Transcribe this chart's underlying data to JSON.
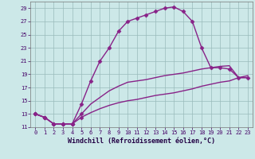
{
  "xlabel": "Windchill (Refroidissement éolien,°C)",
  "bg_color": "#cce8e8",
  "grid_color": "#99bbbb",
  "line_color": "#882288",
  "xmin": -0.5,
  "xmax": 23.5,
  "ymin": 11,
  "ymax": 30,
  "series_main": [
    0,
    1,
    2,
    3,
    4,
    5,
    6,
    7,
    8,
    9,
    10,
    11,
    12,
    13,
    14,
    15,
    16,
    17,
    18,
    19,
    20,
    21,
    22,
    23
  ],
  "y_main": [
    13,
    12.5,
    11.5,
    11.5,
    11.5,
    14.5,
    18.0,
    21.0,
    23.0,
    25.5,
    27.0,
    27.5,
    28.0,
    28.5,
    29.0,
    29.2,
    28.5,
    27.0,
    23.0,
    20.0,
    20.0,
    19.8,
    18.5,
    18.5
  ],
  "y_mid": [
    13,
    12.5,
    11.5,
    11.5,
    11.5,
    13.0,
    14.5,
    15.5,
    16.5,
    17.2,
    17.8,
    18.0,
    18.2,
    18.5,
    18.8,
    19.0,
    19.2,
    19.5,
    19.8,
    20.0,
    20.2,
    20.3,
    18.5,
    18.5
  ],
  "y_low": [
    13,
    12.5,
    11.5,
    11.5,
    11.5,
    12.5,
    13.2,
    13.8,
    14.3,
    14.7,
    15.0,
    15.2,
    15.5,
    15.8,
    16.0,
    16.2,
    16.5,
    16.8,
    17.2,
    17.5,
    17.8,
    18.0,
    18.5,
    18.8
  ],
  "marker": "D",
  "marker_size": 2.5,
  "linewidth": 1.0,
  "tick_fontsize": 5,
  "xlabel_fontsize": 6,
  "ytick_vals": [
    11,
    13,
    15,
    17,
    19,
    21,
    23,
    25,
    27,
    29
  ]
}
